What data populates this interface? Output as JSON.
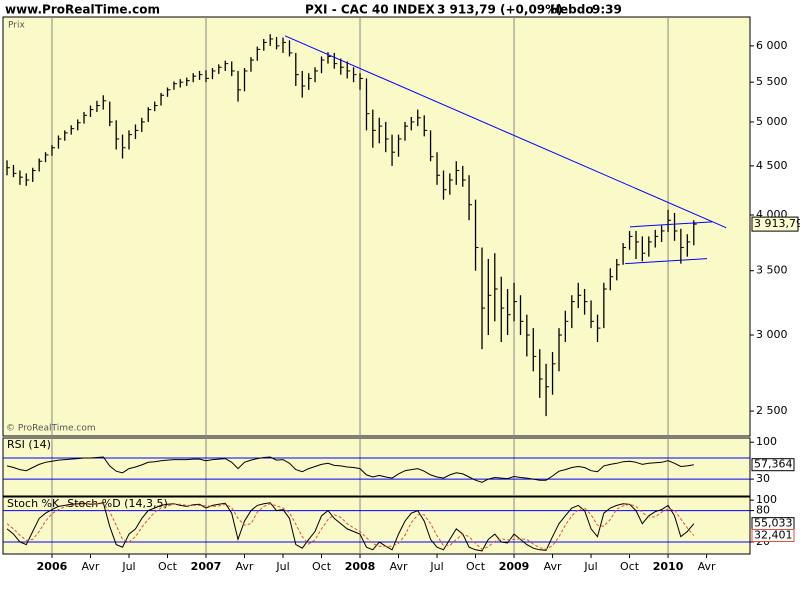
{
  "header": {
    "site": "www.ProRealTime.com",
    "instrument": "PXI - CAC 40 INDEX",
    "quote": "3 913,79 (+0,09%)",
    "period": "Hebdo",
    "time": "9:39"
  },
  "chart_data": [
    {
      "type": "ohlc",
      "label": "Prix",
      "footer": "© ProRealTime.com",
      "color": "#000000",
      "background": "#fafac8",
      "log_scale": true,
      "x": [
        2005.708,
        2005.75,
        2005.792,
        2005.833,
        2005.875,
        2005.917,
        2005.958,
        2006,
        2006.042,
        2006.083,
        2006.125,
        2006.167,
        2006.208,
        2006.25,
        2006.292,
        2006.333,
        2006.375,
        2006.417,
        2006.458,
        2006.5,
        2006.542,
        2006.583,
        2006.625,
        2006.667,
        2006.708,
        2006.75,
        2006.792,
        2006.833,
        2006.875,
        2006.917,
        2006.958,
        2007,
        2007.042,
        2007.083,
        2007.125,
        2007.167,
        2007.208,
        2007.25,
        2007.292,
        2007.333,
        2007.375,
        2007.417,
        2007.458,
        2007.5,
        2007.542,
        2007.583,
        2007.625,
        2007.667,
        2007.708,
        2007.75,
        2007.792,
        2007.833,
        2007.875,
        2007.917,
        2007.958,
        2008,
        2008.042,
        2008.083,
        2008.125,
        2008.167,
        2008.208,
        2008.25,
        2008.292,
        2008.333,
        2008.375,
        2008.417,
        2008.458,
        2008.5,
        2008.542,
        2008.583,
        2008.625,
        2008.667,
        2008.708,
        2008.75,
        2008.792,
        2008.833,
        2008.875,
        2008.917,
        2008.958,
        2009,
        2009.042,
        2009.083,
        2009.125,
        2009.167,
        2009.208,
        2009.25,
        2009.292,
        2009.333,
        2009.375,
        2009.417,
        2009.458,
        2009.5,
        2009.542,
        2009.583,
        2009.625,
        2009.667,
        2009.708,
        2009.75,
        2009.792,
        2009.833,
        2009.875,
        2009.917,
        2009.958,
        2010,
        2010.042,
        2010.083,
        2010.125,
        2010.167
      ],
      "high": [
        4560,
        4510,
        4450,
        4420,
        4480,
        4580,
        4650,
        4730,
        4840,
        4900,
        4960,
        5030,
        5120,
        5200,
        5260,
        5330,
        5250,
        5020,
        4850,
        4900,
        4970,
        5050,
        5180,
        5250,
        5360,
        5430,
        5510,
        5540,
        5560,
        5620,
        5650,
        5660,
        5690,
        5740,
        5790,
        5780,
        5650,
        5690,
        5840,
        5990,
        6100,
        6170,
        6130,
        6120,
        6080,
        5900,
        5650,
        5620,
        5700,
        5850,
        5910,
        5900,
        5820,
        5780,
        5700,
        5620,
        5550,
        5150,
        5050,
        5000,
        4850,
        4850,
        5000,
        5060,
        5150,
        5080,
        4900,
        4650,
        4450,
        4420,
        4550,
        4500,
        4400,
        4150,
        3700,
        3600,
        3650,
        3450,
        3350,
        3400,
        3300,
        3150,
        3050,
        2900,
        2800,
        2880,
        3050,
        3180,
        3300,
        3400,
        3350,
        3260,
        3150,
        3400,
        3520,
        3600,
        3740,
        3850,
        3850,
        3800,
        3800,
        3860,
        3900,
        4050,
        4020,
        3870,
        3820,
        3950
      ],
      "low": [
        4400,
        4380,
        4300,
        4290,
        4330,
        4440,
        4540,
        4610,
        4690,
        4780,
        4850,
        4900,
        4980,
        5060,
        5120,
        5150,
        4950,
        4680,
        4580,
        4680,
        4800,
        4880,
        5000,
        5130,
        5200,
        5310,
        5400,
        5430,
        5450,
        5500,
        5530,
        5500,
        5540,
        5610,
        5650,
        5580,
        5250,
        5380,
        5640,
        5790,
        5930,
        6000,
        5950,
        5900,
        5850,
        5450,
        5300,
        5400,
        5500,
        5620,
        5750,
        5680,
        5600,
        5550,
        5500,
        5400,
        4900,
        4700,
        4750,
        4650,
        4500,
        4600,
        4780,
        4900,
        4950,
        4830,
        4550,
        4300,
        4150,
        4200,
        4300,
        4280,
        3950,
        3500,
        2900,
        3000,
        3100,
        2950,
        3000,
        3100,
        3000,
        2850,
        2750,
        2580,
        2470,
        2600,
        2750,
        2950,
        3050,
        3200,
        3150,
        3050,
        2950,
        3050,
        3340,
        3420,
        3550,
        3680,
        3600,
        3580,
        3620,
        3700,
        3750,
        3840,
        3760,
        3560,
        3620,
        3720
      ],
      "close": [
        4480,
        4420,
        4380,
        4350,
        4450,
        4550,
        4620,
        4700,
        4800,
        4870,
        4920,
        4990,
        5080,
        5150,
        5200,
        5260,
        5000,
        4800,
        4700,
        4850,
        4900,
        5000,
        5150,
        5200,
        5330,
        5400,
        5480,
        5500,
        5520,
        5580,
        5600,
        5550,
        5650,
        5700,
        5750,
        5650,
        5400,
        5650,
        5800,
        5950,
        6050,
        6100,
        6000,
        6050,
        5900,
        5600,
        5450,
        5550,
        5650,
        5800,
        5850,
        5750,
        5700,
        5650,
        5600,
        5550,
        5100,
        4900,
        4950,
        4800,
        4650,
        4800,
        4950,
        5000,
        5050,
        4900,
        4600,
        4400,
        4250,
        4350,
        4450,
        4350,
        4100,
        3700,
        3200,
        3300,
        3350,
        3200,
        3150,
        3250,
        3100,
        3000,
        2850,
        2700,
        2650,
        2800,
        3000,
        3100,
        3250,
        3300,
        3250,
        3100,
        3050,
        3350,
        3450,
        3550,
        3700,
        3800,
        3750,
        3650,
        3750,
        3800,
        3850,
        3950,
        3850,
        3700,
        3750,
        3913.79
      ],
      "last_label": "3 913,79",
      "xlim": [
        2005.682,
        2010.532
      ],
      "xticks": [
        2006,
        {
          "value": 2006.25,
          "label": "Avr"
        },
        {
          "value": 2006.5,
          "label": "Jul"
        },
        {
          "value": 2006.75,
          "label": "Oct"
        },
        2007,
        {
          "value": 2007.25,
          "label": "Avr"
        },
        {
          "value": 2007.5,
          "label": "Jul"
        },
        {
          "value": 2007.75,
          "label": "Oct"
        },
        2008,
        {
          "value": 2008.25,
          "label": "Avr"
        },
        {
          "value": 2008.5,
          "label": "Jul"
        },
        {
          "value": 2008.75,
          "label": "Oct"
        },
        2009,
        {
          "value": 2009.25,
          "label": "Avr"
        },
        {
          "value": 2009.5,
          "label": "Jul"
        },
        {
          "value": 2009.75,
          "label": "Oct"
        },
        2010,
        {
          "value": 2010.25,
          "label": "Avr"
        }
      ],
      "ylim": [
        2355,
        6430
      ],
      "yticks": [
        {
          "value": 2500,
          "label": "2 500"
        },
        {
          "value": 3000,
          "label": "3 000"
        },
        {
          "value": 3500,
          "label": "3 500"
        },
        {
          "value": 4000,
          "label": "4 000"
        },
        {
          "value": 4500,
          "label": "4 500"
        },
        {
          "value": 5000,
          "label": "5 000"
        },
        {
          "value": 5500,
          "label": "5 500"
        },
        {
          "value": 6000,
          "label": "6 000"
        }
      ],
      "trendline_color": "#0000ff",
      "trendlines": [
        {
          "x": [
            2007.513,
            2010.377
          ],
          "y": [
            6146,
            3880
          ]
        },
        {
          "x": [
            2009.753,
            2010.286
          ],
          "y": [
            3888,
            3935
          ]
        },
        {
          "x": [
            2009.721,
            2010.253
          ],
          "y": [
            3560,
            3603
          ]
        }
      ]
    },
    {
      "type": "line",
      "background": "#fafac8",
      "ylim": [
        -2,
        108
      ],
      "yticks": [
        100,
        30
      ],
      "levels": [
        70,
        30
      ],
      "level_color": "#0000ff",
      "series": [
        {
          "name": "RSI (14)",
          "color": "#000000",
          "last_label": "57,364",
          "values": [
            55,
            52,
            48,
            46,
            52,
            58,
            62,
            64,
            66,
            67,
            68,
            69,
            70,
            70,
            71,
            72,
            55,
            45,
            42,
            50,
            53,
            57,
            62,
            63,
            65,
            66,
            67,
            67,
            67,
            68,
            68,
            65,
            67,
            68,
            69,
            62,
            50,
            62,
            66,
            69,
            71,
            72,
            66,
            67,
            60,
            48,
            44,
            50,
            54,
            58,
            60,
            56,
            55,
            53,
            52,
            50,
            38,
            34,
            37,
            34,
            32,
            40,
            46,
            48,
            50,
            45,
            38,
            34,
            32,
            38,
            42,
            40,
            34,
            28,
            24,
            30,
            33,
            32,
            31,
            35,
            33,
            32,
            30,
            28,
            28,
            36,
            45,
            48,
            52,
            54,
            52,
            46,
            44,
            55,
            58,
            60,
            63,
            64,
            62,
            58,
            60,
            61,
            62,
            65,
            60,
            54,
            55,
            57.364
          ]
        }
      ]
    },
    {
      "type": "line",
      "background": "#fafac8",
      "ylim": [
        -3,
        106
      ],
      "yticks": [
        100,
        80,
        20
      ],
      "levels": [
        80,
        20
      ],
      "level_color": "#0000ff",
      "series": [
        {
          "name": "Stoch %K",
          "color": "#000000",
          "last_label": "55,033",
          "values": [
            45,
            35,
            20,
            15,
            40,
            65,
            75,
            82,
            88,
            90,
            92,
            93,
            94,
            92,
            93,
            95,
            50,
            15,
            10,
            35,
            45,
            65,
            80,
            85,
            90,
            92,
            93,
            90,
            88,
            91,
            92,
            85,
            90,
            92,
            94,
            75,
            25,
            60,
            80,
            90,
            93,
            95,
            80,
            82,
            65,
            15,
            8,
            25,
            40,
            70,
            80,
            65,
            55,
            45,
            40,
            35,
            10,
            5,
            20,
            12,
            5,
            35,
            60,
            75,
            80,
            60,
            25,
            10,
            5,
            25,
            45,
            35,
            10,
            5,
            3,
            25,
            35,
            20,
            18,
            35,
            25,
            15,
            8,
            5,
            4,
            30,
            55,
            70,
            85,
            90,
            80,
            45,
            30,
            75,
            85,
            90,
            93,
            92,
            80,
            55,
            70,
            78,
            82,
            90,
            70,
            30,
            40,
            55.033
          ]
        },
        {
          "name": "Stoch %D (14,3,5)",
          "color": "#e05040",
          "dashed": true,
          "last_label": "32,401",
          "values": [
            55,
            45,
            33,
            23,
            25,
            40,
            60,
            74,
            82,
            87,
            90,
            92,
            93,
            93,
            93,
            93,
            78,
            52,
            25,
            20,
            30,
            48,
            63,
            77,
            85,
            89,
            92,
            92,
            90,
            90,
            90,
            89,
            88,
            89,
            92,
            86,
            65,
            52,
            55,
            77,
            88,
            93,
            89,
            85,
            76,
            54,
            30,
            16,
            24,
            45,
            63,
            72,
            67,
            55,
            47,
            40,
            28,
            17,
            12,
            12,
            12,
            17,
            33,
            57,
            72,
            72,
            55,
            32,
            13,
            13,
            25,
            35,
            30,
            17,
            6,
            11,
            21,
            26,
            24,
            25,
            26,
            25,
            16,
            9,
            6,
            13,
            30,
            52,
            70,
            82,
            85,
            72,
            52,
            50,
            63,
            83,
            89,
            92,
            88,
            76,
            68,
            68,
            77,
            83,
            81,
            64,
            47,
            32.401
          ]
        }
      ]
    }
  ]
}
